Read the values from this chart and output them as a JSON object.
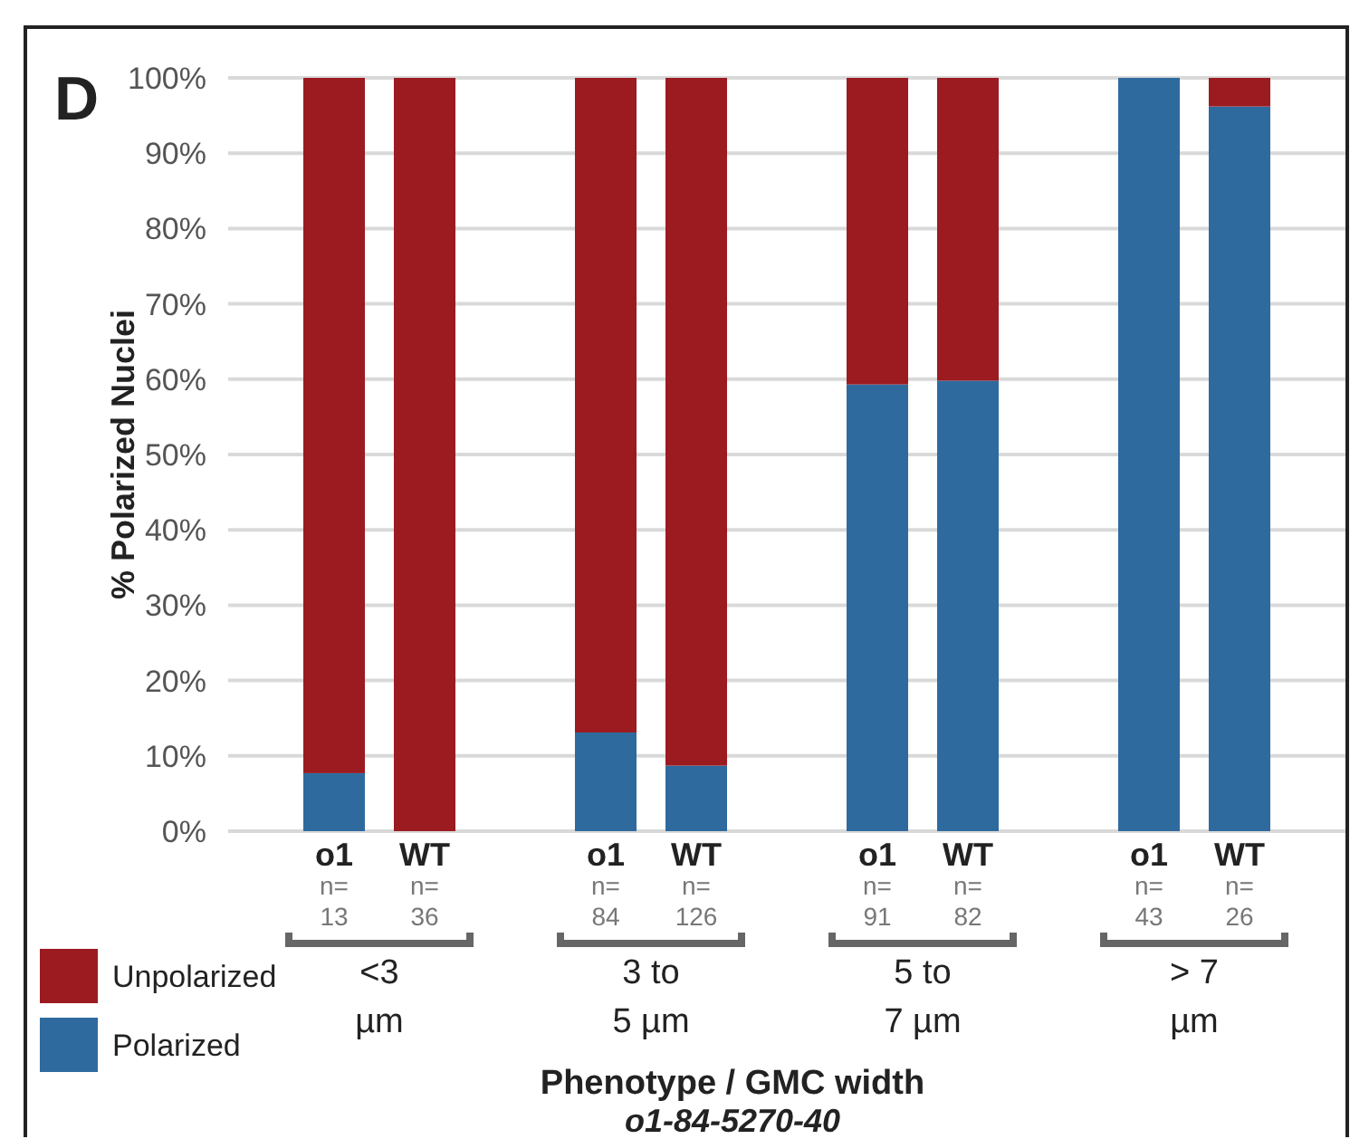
{
  "chart_data": {
    "type": "bar",
    "title": "D",
    "ylabel": "% Polarized Nuclei",
    "categories": [
      "o1",
      "WT",
      null,
      "o1",
      "WT",
      null,
      "o1",
      "WT",
      null,
      "o1",
      "WT"
    ],
    "stacked": true,
    "series": [
      {
        "name": "Polarized",
        "color": "#2e6a9e",
        "values": [
          7.7,
          0,
          null,
          13.1,
          8.7,
          null,
          59.3,
          59.8,
          null,
          100,
          96.2
        ]
      },
      {
        "name": "Unpolarized",
        "color": "#9b1b20",
        "values": [
          92.3,
          100,
          null,
          86.9,
          91.3,
          null,
          40.7,
          40.2,
          null,
          0,
          3.8
        ]
      }
    ],
    "ylim": [
      0,
      100
    ],
    "yticks": [
      {
        "value": 0,
        "label": "0%"
      },
      {
        "value": 10,
        "label": "10%"
      },
      {
        "value": 20,
        "label": "20%"
      },
      {
        "value": 30,
        "label": "30%"
      },
      {
        "value": 40,
        "label": "40%"
      },
      {
        "value": 50,
        "label": "50%"
      },
      {
        "value": 60,
        "label": "60%"
      },
      {
        "value": 70,
        "label": "70%"
      },
      {
        "value": 80,
        "label": "80%"
      },
      {
        "value": 90,
        "label": "90%"
      },
      {
        "value": 100,
        "label": "100%"
      }
    ],
    "grid": "y",
    "legend": "bottom left",
    "annotations": [
      "n=\n13",
      "n=\n36",
      "n=\n84",
      "n=\n126",
      "n=\n91",
      "n=\n82",
      "n=\n43",
      "n=\n26",
      "<3\nµm",
      "3 to\n5 µm",
      "5 to\n7 µm",
      "> 7\nµm",
      "Phenotype / GMC width",
      "o1-84-5270-40"
    ]
  }
}
